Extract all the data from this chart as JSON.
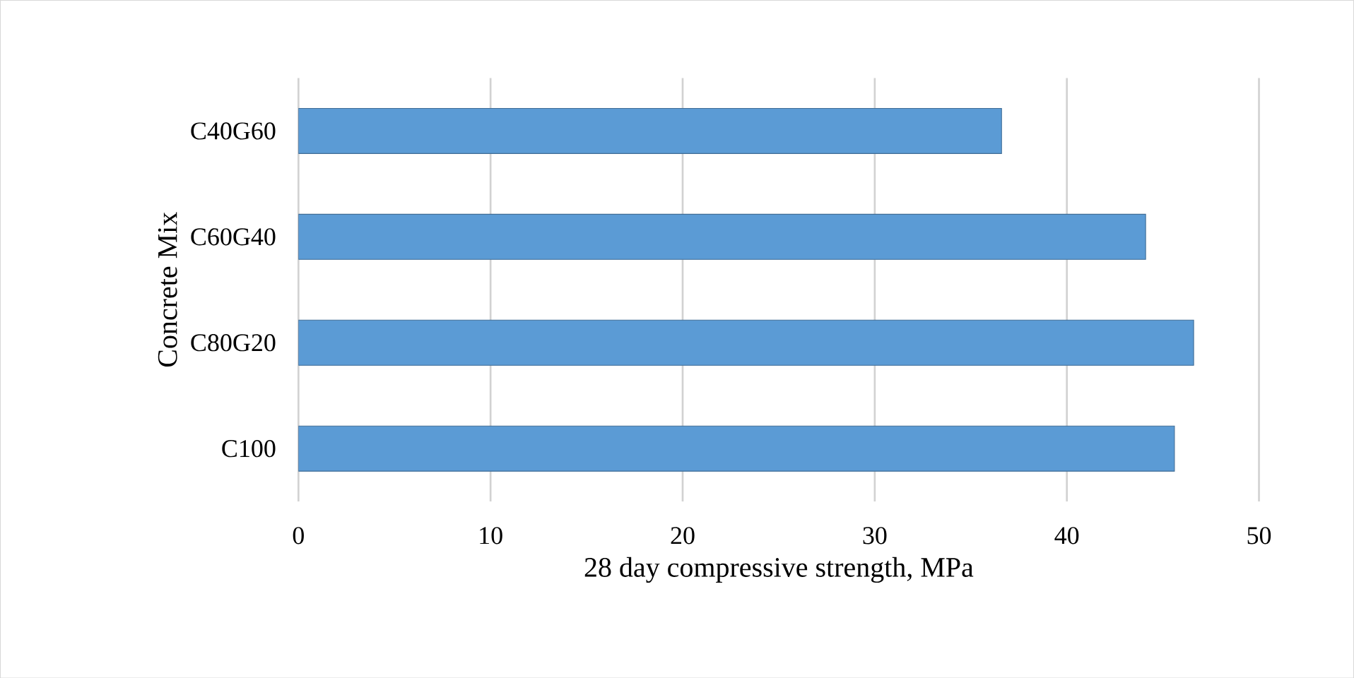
{
  "chart_data": {
    "type": "bar",
    "orientation": "horizontal",
    "xlabel": "28 day compressive strength, MPa",
    "ylabel": "Concrete Mix",
    "categories": [
      "C40G60",
      "C60G40",
      "C80G20",
      "C100"
    ],
    "values": [
      36.6,
      44.1,
      46.6,
      45.6
    ],
    "color": "#5b9bd5",
    "xlim": [
      0,
      50
    ],
    "xticks": [
      0,
      10,
      20,
      30,
      40,
      50
    ],
    "grid": "x"
  }
}
